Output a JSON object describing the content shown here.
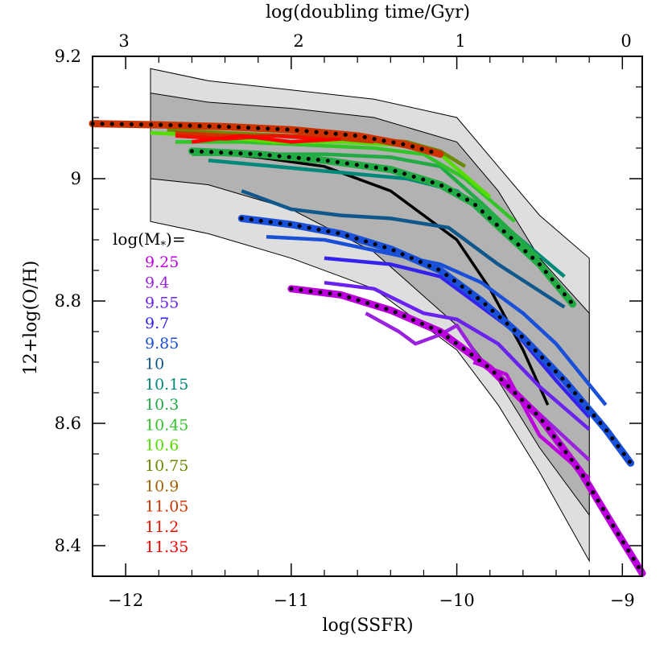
{
  "chart_data": {
    "type": "line",
    "xlabel": "log(SSFR)",
    "ylabel": "12+log(O/H)",
    "top_xlabel": "log(doubling time/Gyr)",
    "xlim": [
      -12.2,
      -8.88
    ],
    "ylim": [
      8.35,
      9.2
    ],
    "x_ticks": [
      -12,
      -11,
      -10,
      -9
    ],
    "x_tick_labels": [
      "−12",
      "−11",
      "−10",
      "−9"
    ],
    "y_ticks": [
      8.4,
      8.6,
      8.8,
      9.0,
      9.2
    ],
    "y_tick_labels": [
      "8.4",
      "8.6",
      "8.8",
      "9",
      "9.2"
    ],
    "top_ticks": [
      3,
      2,
      1,
      0
    ],
    "top_tick_labels": [
      "3",
      "2",
      "1",
      "0"
    ],
    "legend_title": "log(M*)=",
    "bands": {
      "outer": {
        "x": [
          -11.85,
          -11.5,
          -11.0,
          -10.5,
          -10.0,
          -9.75,
          -9.5,
          -9.2
        ],
        "upper": [
          9.18,
          9.16,
          9.145,
          9.13,
          9.1,
          9.02,
          8.94,
          8.87
        ],
        "lower": [
          8.93,
          8.91,
          8.87,
          8.82,
          8.72,
          8.63,
          8.52,
          8.375
        ]
      },
      "inner": {
        "x": [
          -11.85,
          -11.5,
          -11.0,
          -10.5,
          -10.0,
          -9.75,
          -9.5,
          -9.2
        ],
        "upper": [
          9.14,
          9.125,
          9.115,
          9.1,
          9.06,
          8.98,
          8.87,
          8.78
        ],
        "lower": [
          9.0,
          8.99,
          8.95,
          8.88,
          8.76,
          8.67,
          8.56,
          8.45
        ]
      }
    },
    "median_curve": {
      "x": [
        -11.6,
        -11.2,
        -10.8,
        -10.4,
        -10.0,
        -9.8,
        -9.6,
        -9.45
      ],
      "y": [
        9.045,
        9.035,
        9.02,
        8.98,
        8.9,
        8.82,
        8.72,
        8.63
      ]
    },
    "series": [
      {
        "name": "9.25",
        "color": "#bb00dd",
        "x": [
          -9.9,
          -9.7,
          -9.5,
          -9.2
        ],
        "y": [
          8.7,
          8.68,
          8.58,
          8.51
        ]
      },
      {
        "name": "9.4",
        "color": "#9922dd",
        "x": [
          -10.55,
          -10.35,
          -10.25,
          -10.1,
          -10.0,
          -9.85,
          -9.6,
          -9.2
        ],
        "y": [
          8.78,
          8.75,
          8.73,
          8.745,
          8.76,
          8.7,
          8.64,
          8.54
        ]
      },
      {
        "name": "9.55",
        "color": "#6a22ee",
        "x": [
          -10.8,
          -10.5,
          -10.2,
          -10.0,
          -9.75,
          -9.5,
          -9.2
        ],
        "y": [
          8.83,
          8.82,
          8.78,
          8.77,
          8.73,
          8.66,
          8.59
        ]
      },
      {
        "name": "9.7",
        "color": "#3322ee",
        "x": [
          -10.8,
          -10.4,
          -10.1,
          -9.9,
          -9.65,
          -9.4,
          -9.2
        ],
        "y": [
          8.87,
          8.86,
          8.84,
          8.8,
          8.75,
          8.67,
          8.61
        ]
      },
      {
        "name": "9.85",
        "color": "#1a50d8",
        "x": [
          -11.15,
          -10.8,
          -10.45,
          -10.1,
          -9.85,
          -9.6,
          -9.4,
          -9.1
        ],
        "y": [
          8.905,
          8.9,
          8.88,
          8.86,
          8.83,
          8.78,
          8.73,
          8.63
        ]
      },
      {
        "name": "10",
        "color": "#10588c",
        "x": [
          -11.3,
          -11.0,
          -10.7,
          -10.4,
          -10.05,
          -9.75,
          -9.35
        ],
        "y": [
          8.98,
          8.95,
          8.94,
          8.935,
          8.92,
          8.86,
          8.79
        ]
      },
      {
        "name": "10.15",
        "color": "#008878",
        "x": [
          -11.5,
          -11.1,
          -10.7,
          -10.3,
          -10.0,
          -9.7,
          -9.35
        ],
        "y": [
          9.03,
          9.02,
          9.01,
          9.0,
          8.98,
          8.92,
          8.84
        ]
      },
      {
        "name": "10.3",
        "color": "#22aa44",
        "x": [
          -11.6,
          -11.2,
          -10.8,
          -10.4,
          -10.1,
          -9.85,
          -9.5
        ],
        "y": [
          9.04,
          9.04,
          9.04,
          9.035,
          9.02,
          8.96,
          8.87
        ]
      },
      {
        "name": "10.45",
        "color": "#33c42a",
        "x": [
          -11.7,
          -11.3,
          -10.9,
          -10.5,
          -10.2,
          -9.95,
          -9.65
        ],
        "y": [
          9.06,
          9.06,
          9.055,
          9.05,
          9.04,
          9.0,
          8.93
        ]
      },
      {
        "name": "10.6",
        "color": "#55dd00",
        "x": [
          -11.85,
          -11.5,
          -11.1,
          -10.7,
          -10.35,
          -10.1,
          -9.8
        ],
        "y": [
          9.075,
          9.07,
          9.06,
          9.06,
          9.055,
          9.04,
          8.97
        ]
      },
      {
        "name": "10.75",
        "color": "#6a8a00",
        "x": [
          -11.75,
          -11.4,
          -11.0,
          -10.6,
          -10.3,
          -10.1,
          -9.95
        ],
        "y": [
          9.08,
          9.075,
          9.07,
          9.065,
          9.06,
          9.045,
          9.02
        ]
      },
      {
        "name": "10.9",
        "color": "#a06000",
        "x": [
          -11.6,
          -11.3,
          -10.9,
          -10.55,
          -10.3
        ],
        "y": [
          9.075,
          9.07,
          9.07,
          9.065,
          9.06
        ]
      },
      {
        "name": "11.05",
        "color": "#cc3300",
        "x": [
          -11.7,
          -11.4,
          -11.0,
          -10.7,
          -10.5
        ],
        "y": [
          9.075,
          9.07,
          9.07,
          9.065,
          9.06
        ]
      },
      {
        "name": "11.2",
        "color": "#ee1100",
        "x": [
          -11.7,
          -11.4,
          -11.1,
          -10.8
        ],
        "y": [
          9.07,
          9.065,
          9.07,
          9.065
        ]
      },
      {
        "name": "11.35",
        "color": "#ff0000",
        "x": [
          -11.6,
          -11.3,
          -11.0,
          -10.7
        ],
        "y": [
          9.06,
          9.07,
          9.06,
          9.065
        ]
      }
    ],
    "fits": [
      {
        "color": "#cc3300",
        "x": [
          -12.2,
          -11.8,
          -11.4,
          -11.0,
          -10.6,
          -10.3,
          -10.1
        ],
        "y": [
          9.09,
          9.088,
          9.085,
          9.08,
          9.07,
          9.055,
          9.04
        ]
      },
      {
        "color": "#22aa44",
        "x": [
          -11.6,
          -11.2,
          -10.8,
          -10.4,
          -10.1,
          -9.9,
          -9.7,
          -9.5,
          -9.3
        ],
        "y": [
          9.045,
          9.04,
          9.03,
          9.015,
          8.99,
          8.96,
          8.91,
          8.86,
          8.795
        ]
      },
      {
        "color": "#1a50d8",
        "x": [
          -11.3,
          -11.0,
          -10.7,
          -10.4,
          -10.1,
          -9.85,
          -9.6,
          -9.35,
          -9.1,
          -8.95
        ],
        "y": [
          8.935,
          8.925,
          8.91,
          8.885,
          8.85,
          8.8,
          8.74,
          8.67,
          8.59,
          8.535
        ]
      },
      {
        "color": "#bb00dd",
        "x": [
          -11.0,
          -10.7,
          -10.4,
          -10.1,
          -9.8,
          -9.5,
          -9.25,
          -9.05,
          -8.88
        ],
        "y": [
          8.82,
          8.81,
          8.785,
          8.75,
          8.69,
          8.61,
          8.52,
          8.43,
          8.355
        ]
      }
    ]
  }
}
